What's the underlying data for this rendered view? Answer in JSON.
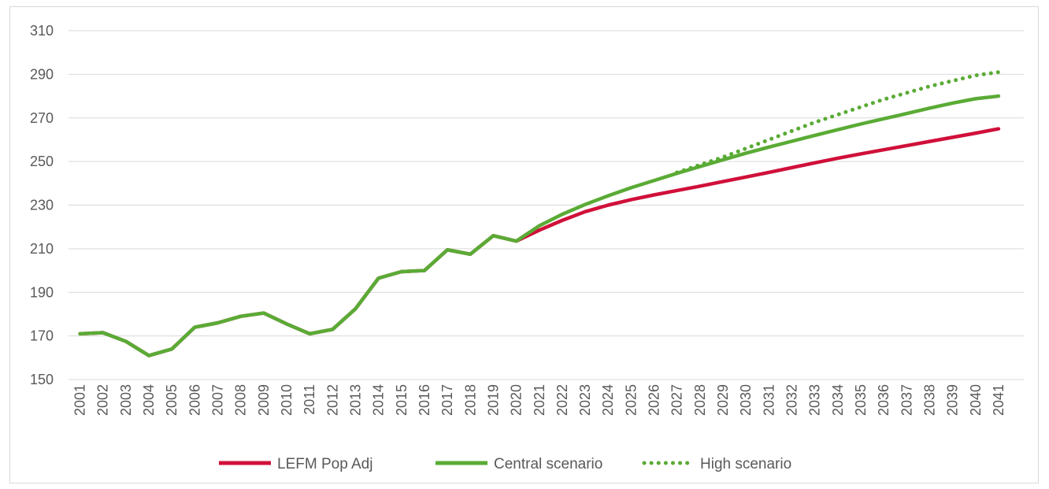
{
  "chart_data": {
    "type": "line",
    "title": "",
    "xlabel": "",
    "ylabel": "",
    "ylim": [
      150,
      310
    ],
    "yticks": [
      150,
      170,
      190,
      210,
      230,
      250,
      270,
      290,
      310
    ],
    "grid": true,
    "legend_position": "bottom",
    "x": [
      "2001",
      "2002",
      "2003",
      "2004",
      "2005",
      "2006",
      "2007",
      "2008",
      "2009",
      "2010",
      "2011",
      "2012",
      "2013",
      "2014",
      "2015",
      "2016",
      "2017",
      "2018",
      "2019",
      "2020",
      "2021",
      "2022",
      "2023",
      "2024",
      "2025",
      "2026",
      "2027",
      "2028",
      "2029",
      "2030",
      "2031",
      "2032",
      "2033",
      "2034",
      "2035",
      "2036",
      "2037",
      "2038",
      "2039",
      "2040",
      "2041"
    ],
    "series": [
      {
        "name": "LEFM Pop Adj",
        "color": "#d0103a",
        "style": "solid",
        "values": [
          171,
          171.5,
          167.5,
          161,
          164,
          174,
          176,
          179,
          180.5,
          175.5,
          171,
          173,
          182.5,
          196.5,
          199.5,
          200,
          209.5,
          207.5,
          216,
          213.5,
          218.5,
          223,
          227,
          230,
          232.5,
          234.7,
          236.7,
          238.7,
          240.8,
          242.9,
          245,
          247.2,
          249.4,
          251.5,
          253.5,
          255.4,
          257.3,
          259.2,
          261.1,
          263,
          265
        ]
      },
      {
        "name": "Central scenario",
        "color": "#5aab35",
        "style": "solid",
        "values": [
          171,
          171.5,
          167.5,
          161,
          164,
          174,
          176,
          179,
          180.5,
          175.5,
          171,
          173,
          182.5,
          196.5,
          199.5,
          200,
          209.5,
          207.5,
          216,
          213.5,
          220.5,
          225.8,
          230.3,
          234.3,
          238,
          241.3,
          244.6,
          247.7,
          250.8,
          253.8,
          256.6,
          259.3,
          262,
          264.6,
          267.2,
          269.6,
          272,
          274.5,
          276.8,
          278.8,
          280
        ]
      },
      {
        "name": "High scenario",
        "color": "#5aab35",
        "style": "dotted",
        "values": [
          null,
          null,
          null,
          null,
          null,
          null,
          null,
          null,
          null,
          null,
          null,
          null,
          null,
          null,
          null,
          null,
          null,
          null,
          null,
          null,
          null,
          null,
          null,
          null,
          null,
          null,
          245,
          248.5,
          252,
          256,
          260,
          264,
          268,
          271.5,
          275,
          278.5,
          281.5,
          284.5,
          287,
          289.5,
          291
        ]
      }
    ]
  }
}
